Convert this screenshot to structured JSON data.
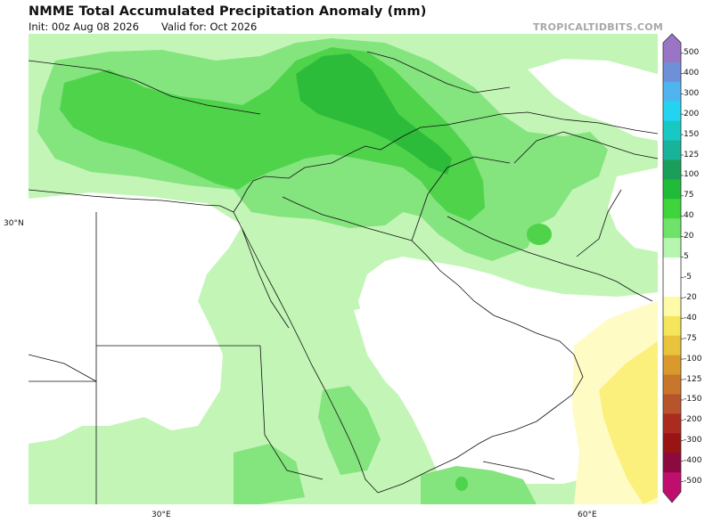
{
  "title": "NMME Total Accumulated Precipitation Anomaly (mm)",
  "init_text": "Init: 00z Aug 08 2026",
  "valid_text": "Valid for: Oct 2026",
  "watermark": "TROPICALTIDBITS.COM",
  "axes": {
    "lat_label": "30°N",
    "lon_labels": [
      "30°E",
      "60°E"
    ]
  },
  "colorbar": {
    "ticks": [
      "500",
      "400",
      "300",
      "200",
      "150",
      "125",
      "100",
      "75",
      "40",
      "20",
      "5",
      "-5",
      "-20",
      "-40",
      "-75",
      "-100",
      "-125",
      "-150",
      "-200",
      "-300",
      "-400",
      "-500"
    ],
    "colors": [
      "#9a75c6",
      "#6f8fd8",
      "#4fb5f0",
      "#23d4f0",
      "#17c9c2",
      "#17b49a",
      "#1a9e5a",
      "#21bb3a",
      "#3fd33c",
      "#6fe26a",
      "#b6f5ad",
      "#ffffff",
      "#ffffff",
      "#fffaa8",
      "#f5e55b",
      "#e9c33c",
      "#d99a2b",
      "#c7762c",
      "#b7542b",
      "#ab2c1f",
      "#9b1414",
      "#8c0a3e",
      "#c00e6e"
    ]
  },
  "colors": {
    "light_green": "#c2f5b6",
    "mid_green": "#84e47e",
    "green": "#4ed34b",
    "dark_green": "#2cbc3a",
    "yellow_light": "#fffbc4",
    "yellow": "#fbf07c",
    "border": "#111111"
  }
}
